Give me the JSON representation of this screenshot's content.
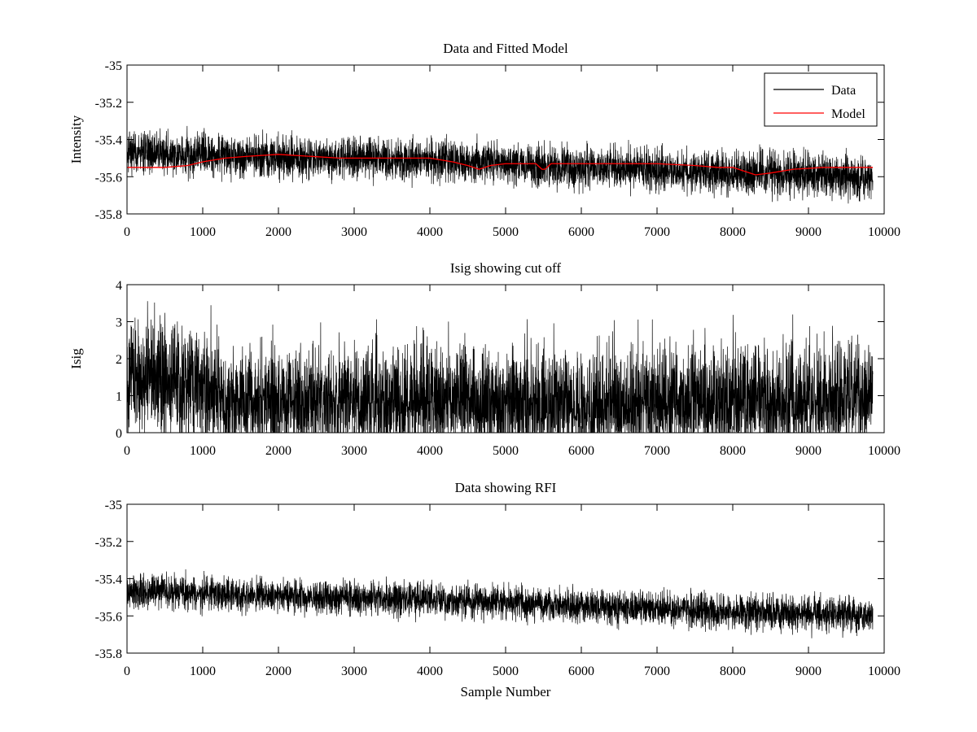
{
  "chart_data": [
    {
      "type": "line",
      "title": "Data and Fitted Model",
      "xlabel": "",
      "ylabel": "Intensity",
      "xlim": [
        0,
        10000
      ],
      "ylim": [
        -35.8,
        -35
      ],
      "xticks": [
        0,
        1000,
        2000,
        3000,
        4000,
        5000,
        6000,
        7000,
        8000,
        9000,
        10000
      ],
      "yticks": [
        -35.8,
        -35.6,
        -35.4,
        -35.2,
        -35
      ],
      "xtick_labels": [
        "0",
        "1000",
        "2000",
        "3000",
        "4000",
        "5000",
        "6000",
        "7000",
        "8000",
        "9000",
        "10000"
      ],
      "ytick_labels": [
        "-35.8",
        "-35.6",
        "-35.4",
        "-35.2",
        "-35"
      ],
      "grid": false,
      "legend": {
        "position": "top-right",
        "entries": [
          "Data",
          "Model"
        ]
      },
      "series": [
        {
          "name": "Data",
          "color": "#000000",
          "description": "noisy trace, ~9850 samples",
          "x": [
            0,
            500,
            1000,
            1500,
            2000,
            2500,
            3000,
            3500,
            4000,
            4500,
            5000,
            5500,
            6000,
            6500,
            7000,
            7500,
            8000,
            8500,
            9000,
            9500,
            9850
          ],
          "mean": [
            -35.47,
            -35.47,
            -35.48,
            -35.49,
            -35.49,
            -35.5,
            -35.5,
            -35.51,
            -35.51,
            -35.52,
            -35.53,
            -35.54,
            -35.55,
            -35.55,
            -35.56,
            -35.57,
            -35.58,
            -35.58,
            -35.59,
            -35.6,
            -35.61
          ],
          "spread": 0.055,
          "seed": 7
        },
        {
          "name": "Model",
          "color": "#ff0000",
          "x": [
            0,
            500,
            800,
            1000,
            1300,
            1600,
            2000,
            2400,
            2800,
            3200,
            3600,
            4000,
            4300,
            4500,
            4650,
            4800,
            5000,
            5400,
            5480,
            5520,
            5600,
            6000,
            6500,
            7000,
            7500,
            7800,
            8000,
            8150,
            8300,
            8500,
            8800,
            9200,
            9850
          ],
          "y": [
            -35.55,
            -35.55,
            -35.54,
            -35.52,
            -35.5,
            -35.49,
            -35.48,
            -35.49,
            -35.5,
            -35.5,
            -35.5,
            -35.5,
            -35.52,
            -35.54,
            -35.56,
            -35.54,
            -35.53,
            -35.53,
            -35.56,
            -35.56,
            -35.53,
            -35.53,
            -35.53,
            -35.53,
            -35.54,
            -35.55,
            -35.55,
            -35.57,
            -35.59,
            -35.58,
            -35.56,
            -35.55,
            -35.55
          ]
        }
      ]
    },
    {
      "type": "line",
      "title": "Isig showing cut off",
      "xlabel": "",
      "ylabel": "Isig",
      "xlim": [
        0,
        10000
      ],
      "ylim": [
        0,
        4
      ],
      "xticks": [
        0,
        1000,
        2000,
        3000,
        4000,
        5000,
        6000,
        7000,
        8000,
        9000,
        10000
      ],
      "yticks": [
        0,
        1,
        2,
        3,
        4
      ],
      "xtick_labels": [
        "0",
        "1000",
        "2000",
        "3000",
        "4000",
        "5000",
        "6000",
        "7000",
        "8000",
        "9000",
        "10000"
      ],
      "ytick_labels": [
        "0",
        "1",
        "2",
        "3",
        "4"
      ],
      "grid": false,
      "series": [
        {
          "name": "Isig",
          "color": "#000000",
          "description": "non-negative noisy trace, higher before ~1300",
          "x": [
            0,
            300,
            600,
            900,
            1200,
            1300,
            2000,
            3000,
            4000,
            5000,
            6000,
            7000,
            8000,
            9000,
            9850
          ],
          "mean": [
            1.5,
            1.5,
            1.5,
            1.3,
            1.1,
            0.8,
            0.8,
            0.8,
            0.8,
            0.75,
            0.75,
            0.8,
            0.8,
            0.85,
            0.9
          ],
          "spread": 0.7,
          "seed": 13
        }
      ]
    },
    {
      "type": "line",
      "title": "Data showing RFI",
      "xlabel": "Sample Number",
      "ylabel": "",
      "xlim": [
        0,
        10000
      ],
      "ylim": [
        -35.8,
        -35
      ],
      "xticks": [
        0,
        1000,
        2000,
        3000,
        4000,
        5000,
        6000,
        7000,
        8000,
        9000,
        10000
      ],
      "yticks": [
        -35.8,
        -35.6,
        -35.4,
        -35.2,
        -35
      ],
      "xtick_labels": [
        "0",
        "1000",
        "2000",
        "3000",
        "4000",
        "5000",
        "6000",
        "7000",
        "8000",
        "9000",
        "10000"
      ],
      "ytick_labels": [
        "-35.8",
        "-35.6",
        "-35.4",
        "-35.2",
        "-35"
      ],
      "grid": false,
      "series": [
        {
          "name": "Data",
          "color": "#000000",
          "description": "noisy trace, ~9850 samples",
          "x": [
            0,
            500,
            1000,
            1500,
            2000,
            2500,
            3000,
            3500,
            4000,
            4500,
            5000,
            5500,
            6000,
            6500,
            7000,
            7500,
            8000,
            8500,
            9000,
            9500,
            9850
          ],
          "mean": [
            -35.47,
            -35.47,
            -35.48,
            -35.49,
            -35.49,
            -35.5,
            -35.5,
            -35.51,
            -35.51,
            -35.52,
            -35.53,
            -35.54,
            -35.55,
            -35.55,
            -35.56,
            -35.57,
            -35.58,
            -35.58,
            -35.59,
            -35.6,
            -35.61
          ],
          "spread": 0.045,
          "seed": 29
        }
      ]
    }
  ]
}
